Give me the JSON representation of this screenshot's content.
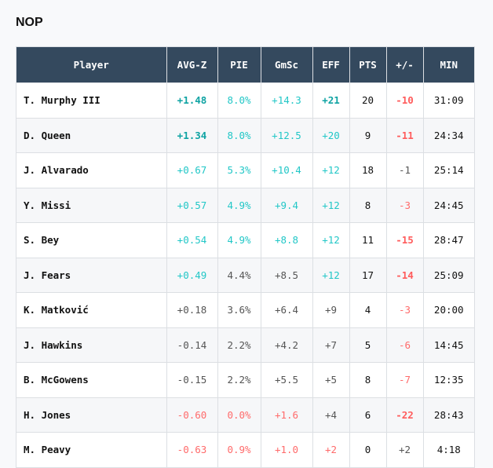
{
  "team": "NOP",
  "colors": {
    "header_bg": "#34495e",
    "pos_strong": "#0fa3a3",
    "pos": "#22c7c7",
    "neutral": "#555555",
    "neg": "#ff6b6b",
    "neg_strong": "#ff5c5c"
  },
  "columns": [
    "Player",
    "AVG-Z",
    "PIE",
    "GmSc",
    "EFF",
    "PTS",
    "+/-",
    "MIN"
  ],
  "rows": [
    {
      "player": "T. Murphy III",
      "cells": [
        [
          "+1.48",
          "pos-strong"
        ],
        [
          "8.0%",
          "pos"
        ],
        [
          "+14.3",
          "pos"
        ],
        [
          "+21",
          "pos-strong"
        ],
        [
          "20",
          "plain"
        ],
        [
          "-10",
          "neg-strong"
        ],
        [
          "31:09",
          "plain"
        ]
      ]
    },
    {
      "player": "D. Queen",
      "cells": [
        [
          "+1.34",
          "pos-strong"
        ],
        [
          "8.0%",
          "pos"
        ],
        [
          "+12.5",
          "pos"
        ],
        [
          "+20",
          "pos"
        ],
        [
          "9",
          "plain"
        ],
        [
          "-11",
          "neg-strong"
        ],
        [
          "24:34",
          "plain"
        ]
      ]
    },
    {
      "player": "J. Alvarado",
      "cells": [
        [
          "+0.67",
          "pos"
        ],
        [
          "5.3%",
          "pos"
        ],
        [
          "+10.4",
          "pos"
        ],
        [
          "+12",
          "pos"
        ],
        [
          "18",
          "plain"
        ],
        [
          "-1",
          "neutral"
        ],
        [
          "25:14",
          "plain"
        ]
      ]
    },
    {
      "player": "Y. Missi",
      "cells": [
        [
          "+0.57",
          "pos"
        ],
        [
          "4.9%",
          "pos"
        ],
        [
          "+9.4",
          "pos"
        ],
        [
          "+12",
          "pos"
        ],
        [
          "8",
          "plain"
        ],
        [
          "-3",
          "neg"
        ],
        [
          "24:45",
          "plain"
        ]
      ]
    },
    {
      "player": "S. Bey",
      "cells": [
        [
          "+0.54",
          "pos"
        ],
        [
          "4.9%",
          "pos"
        ],
        [
          "+8.8",
          "pos"
        ],
        [
          "+12",
          "pos"
        ],
        [
          "11",
          "plain"
        ],
        [
          "-15",
          "neg-strong"
        ],
        [
          "28:47",
          "plain"
        ]
      ]
    },
    {
      "player": "J. Fears",
      "cells": [
        [
          "+0.49",
          "pos"
        ],
        [
          "4.4%",
          "neutral"
        ],
        [
          "+8.5",
          "neutral"
        ],
        [
          "+12",
          "pos"
        ],
        [
          "17",
          "plain"
        ],
        [
          "-14",
          "neg-strong"
        ],
        [
          "25:09",
          "plain"
        ]
      ]
    },
    {
      "player": "K. Matković",
      "cells": [
        [
          "+0.18",
          "neutral"
        ],
        [
          "3.6%",
          "neutral"
        ],
        [
          "+6.4",
          "neutral"
        ],
        [
          "+9",
          "neutral"
        ],
        [
          "4",
          "plain"
        ],
        [
          "-3",
          "neg"
        ],
        [
          "20:00",
          "plain"
        ]
      ]
    },
    {
      "player": "J. Hawkins",
      "cells": [
        [
          "-0.14",
          "neutral"
        ],
        [
          "2.2%",
          "neutral"
        ],
        [
          "+4.2",
          "neutral"
        ],
        [
          "+7",
          "neutral"
        ],
        [
          "5",
          "plain"
        ],
        [
          "-6",
          "neg"
        ],
        [
          "14:45",
          "plain"
        ]
      ]
    },
    {
      "player": "B. McGowens",
      "cells": [
        [
          "-0.15",
          "neutral"
        ],
        [
          "2.2%",
          "neutral"
        ],
        [
          "+5.5",
          "neutral"
        ],
        [
          "+5",
          "neutral"
        ],
        [
          "8",
          "plain"
        ],
        [
          "-7",
          "neg"
        ],
        [
          "12:35",
          "plain"
        ]
      ]
    },
    {
      "player": "H. Jones",
      "cells": [
        [
          "-0.60",
          "neg"
        ],
        [
          "0.0%",
          "neg"
        ],
        [
          "+1.6",
          "neg"
        ],
        [
          "+4",
          "neutral"
        ],
        [
          "6",
          "plain"
        ],
        [
          "-22",
          "neg-strong"
        ],
        [
          "28:43",
          "plain"
        ]
      ]
    },
    {
      "player": "M. Peavy",
      "cells": [
        [
          "-0.63",
          "neg"
        ],
        [
          "0.9%",
          "neg"
        ],
        [
          "+1.0",
          "neg"
        ],
        [
          "+2",
          "neg"
        ],
        [
          "0",
          "plain"
        ],
        [
          "+2",
          "neutral"
        ],
        [
          "4:18",
          "plain"
        ]
      ]
    }
  ]
}
